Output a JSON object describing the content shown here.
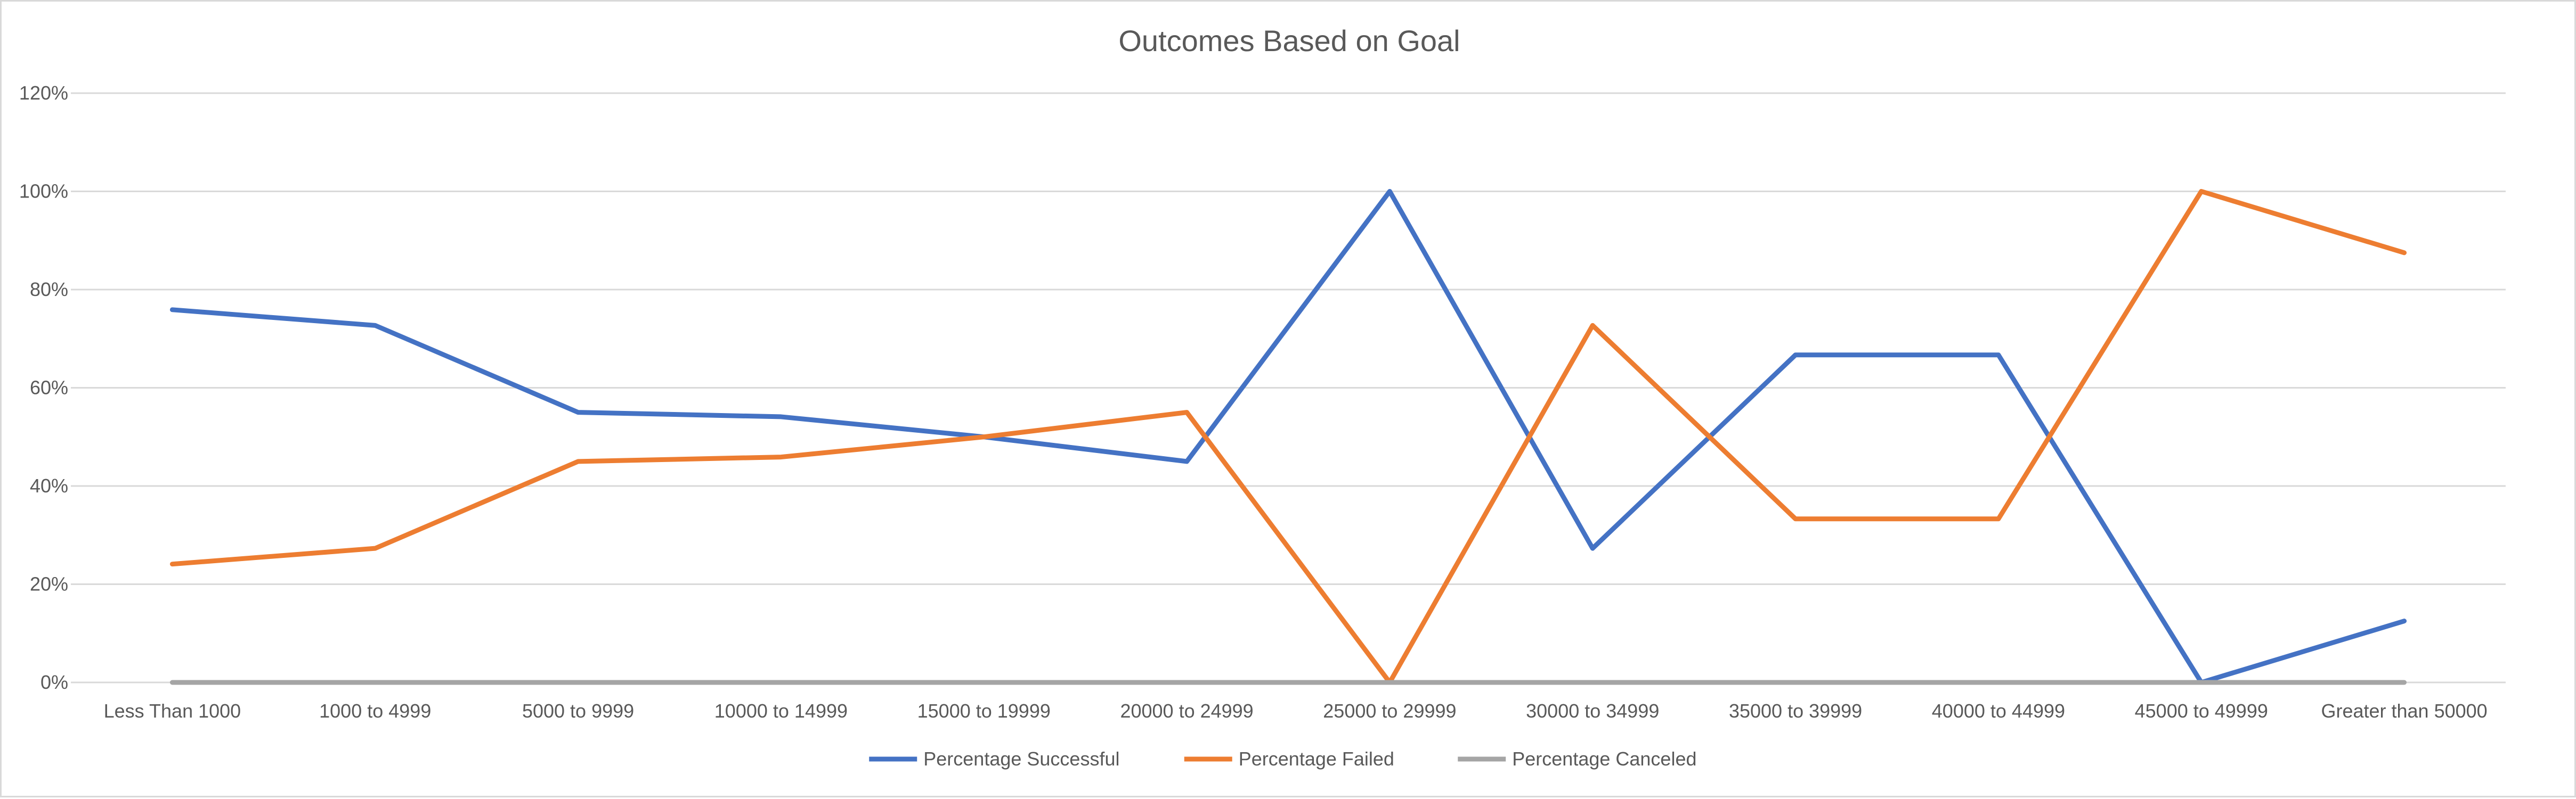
{
  "chart_data": {
    "type": "line",
    "title": "Outcomes Based on Goal",
    "xlabel": "",
    "ylabel": "",
    "categories": [
      "Less Than 1000",
      "1000 to 4999",
      "5000 to 9999",
      "10000 to 14999",
      "15000 to 19999",
      "20000 to 24999",
      "25000 to 29999",
      "30000 to 34999",
      "35000 to 39999",
      "40000 to 44999",
      "45000 to 49999",
      "Greater than 50000"
    ],
    "ylim": [
      0,
      120
    ],
    "yticks": [
      "0%",
      "20%",
      "40%",
      "60%",
      "80%",
      "100%",
      "120%"
    ],
    "grid": true,
    "legend_position": "bottom",
    "series": [
      {
        "name": "Percentage Successful",
        "color": "#4472c4",
        "values": [
          75.9,
          72.7,
          55,
          54.1,
          50,
          45,
          100,
          27.3,
          66.7,
          66.7,
          0,
          12.5
        ]
      },
      {
        "name": "Percentage Failed",
        "color": "#ed7d31",
        "values": [
          24.1,
          27.3,
          45,
          45.9,
          50,
          55,
          0,
          72.7,
          33.3,
          33.3,
          100,
          87.5
        ]
      },
      {
        "name": "Percentage Canceled",
        "color": "#a5a5a5",
        "values": [
          0,
          0,
          0,
          0,
          0,
          0,
          0,
          0,
          0,
          0,
          0,
          0
        ]
      }
    ]
  }
}
